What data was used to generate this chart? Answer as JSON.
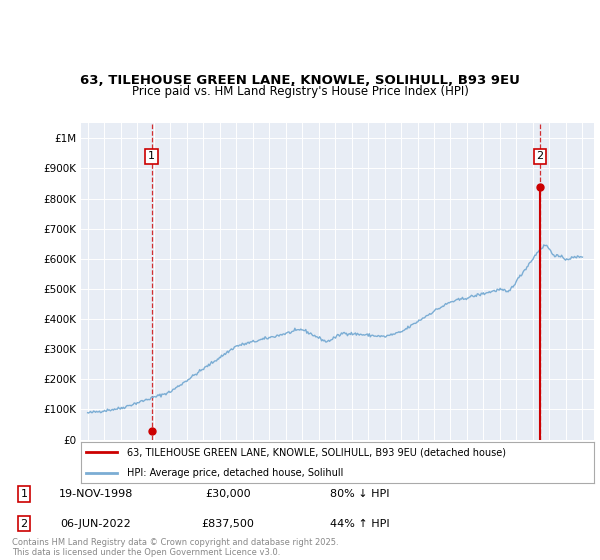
{
  "title_line1": "63, TILEHOUSE GREEN LANE, KNOWLE, SOLIHULL, B93 9EU",
  "title_line2": "Price paid vs. HM Land Registry's House Price Index (HPI)",
  "plot_bg_color": "#e8edf5",
  "transaction1": {
    "date": "19-NOV-1998",
    "price": 30000,
    "label": "1"
  },
  "transaction2": {
    "date": "06-JUN-2022",
    "price": 837500,
    "label": "2"
  },
  "ylim_max": 1050000,
  "yticks": [
    0,
    100000,
    200000,
    300000,
    400000,
    500000,
    600000,
    700000,
    800000,
    900000,
    1000000
  ],
  "ytick_labels": [
    "£0",
    "£100K",
    "£200K",
    "£300K",
    "£400K",
    "£500K",
    "£600K",
    "£700K",
    "£800K",
    "£900K",
    "£1M"
  ],
  "hpi_color": "#7badd4",
  "sale_color": "#cc0000",
  "footnote": "Contains HM Land Registry data © Crown copyright and database right 2025.\nThis data is licensed under the Open Government Licence v3.0.",
  "legend1": "63, TILEHOUSE GREEN LANE, KNOWLE, SOLIHULL, B93 9EU (detached house)",
  "legend2": "HPI: Average price, detached house, Solihull",
  "info1_date": "19-NOV-1998",
  "info1_price": "£30,000",
  "info1_pct": "80% ↓ HPI",
  "info2_date": "06-JUN-2022",
  "info2_price": "£837,500",
  "info2_pct": "44% ↑ HPI"
}
